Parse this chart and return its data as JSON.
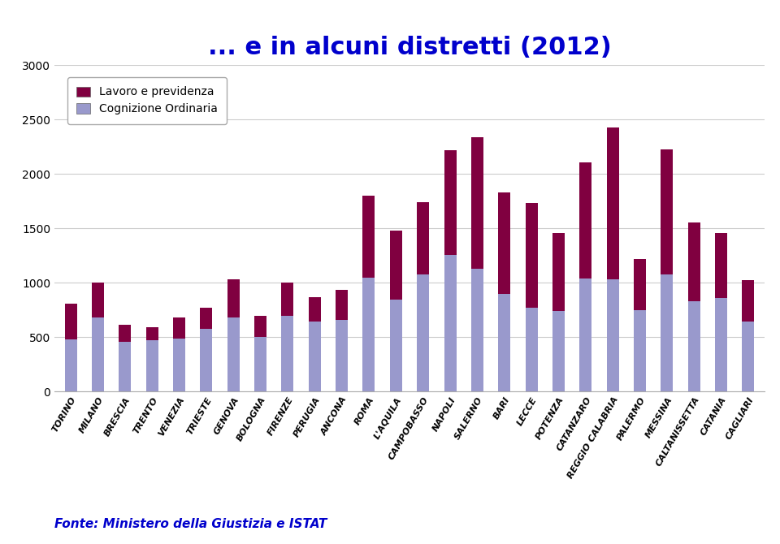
{
  "title": "... e in alcuni distretti (2012)",
  "title_color": "#0000CC",
  "categories": [
    "TORINO",
    "MILANO",
    "BRESCIA",
    "TRENTO",
    "VENEZIA",
    "TRIESTE",
    "GENOVA",
    "BOLOGNA",
    "FIRENZE",
    "PERUGIA",
    "ANCONA",
    "ROMA",
    "L'AQUILA",
    "CAMPOBASSO",
    "NAPOLI",
    "SALERNO",
    "BARI",
    "LECCE",
    "POTENZA",
    "CATANZARO",
    "REGGIO CALABRIA",
    "PALERMO",
    "MESSINA",
    "CALTANISSETTA",
    "CATANIA",
    "CAGLIARI"
  ],
  "cognizione": [
    480,
    685,
    455,
    470,
    490,
    575,
    680,
    505,
    695,
    645,
    660,
    1050,
    845,
    1080,
    1260,
    1130,
    895,
    770,
    740,
    1040,
    1035,
    750,
    1080,
    835,
    860,
    645
  ],
  "lavoro": [
    330,
    315,
    160,
    120,
    195,
    200,
    355,
    195,
    310,
    220,
    275,
    755,
    635,
    660,
    960,
    1210,
    940,
    965,
    720,
    1070,
    1390,
    470,
    1145,
    720,
    595,
    380
  ],
  "cognizione_color": "#9999CC",
  "lavoro_color": "#800040",
  "legend_lavoro": "Lavoro e previdenza",
  "legend_cognizione": "Cognizione Ordinaria",
  "ylim": [
    0,
    3000
  ],
  "yticks": [
    0,
    500,
    1000,
    1500,
    2000,
    2500,
    3000
  ],
  "source_text": "Fonte: Ministero della Giustizia e ISTAT",
  "source_color": "#0000CC",
  "background_color": "#FFFFFF",
  "grid_color": "#CCCCCC",
  "bar_width": 0.45
}
